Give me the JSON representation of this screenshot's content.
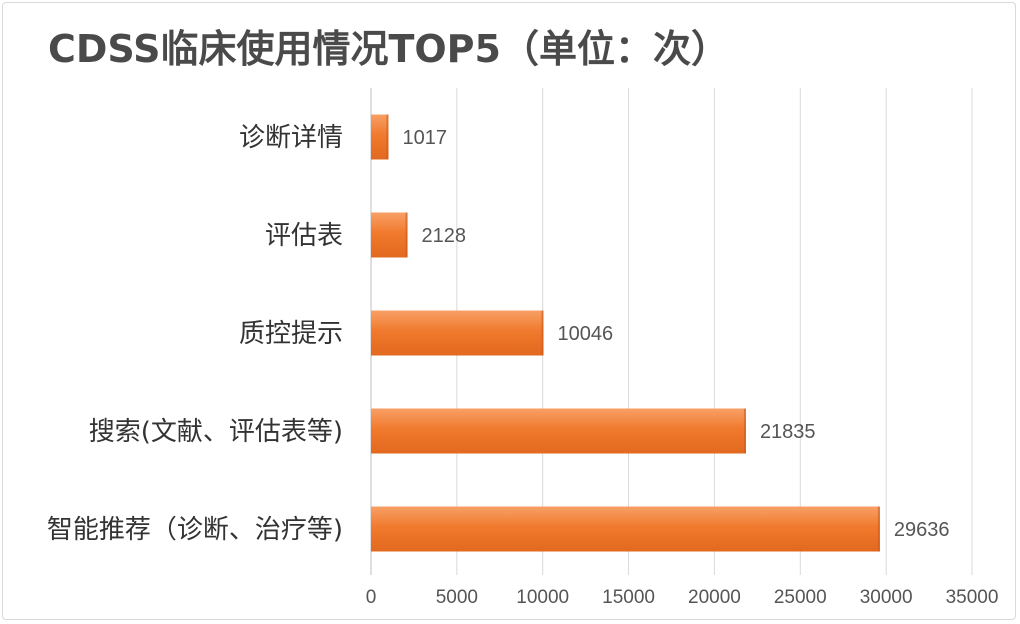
{
  "chart_data": {
    "type": "bar",
    "orientation": "horizontal",
    "title": "CDSS临床使用情况TOP5（单位：次）",
    "categories": [
      "诊断详情",
      "评估表",
      "质控提示",
      "搜索(文献、评估表等)",
      "智能推荐（诊断、治疗等)"
    ],
    "values": [
      1017,
      2128,
      10046,
      21835,
      29636
    ],
    "data_labels": [
      "1017",
      "2128",
      "10046",
      "21835",
      "29636"
    ],
    "xlim": [
      0,
      35000
    ],
    "x_ticks": [
      "0",
      "5000",
      "10000",
      "15000",
      "20000",
      "25000",
      "30000",
      "35000"
    ],
    "grid": "vertical",
    "legend": "none",
    "bar_color": "#f07a2e",
    "bar_highlight": "#f8a066"
  }
}
